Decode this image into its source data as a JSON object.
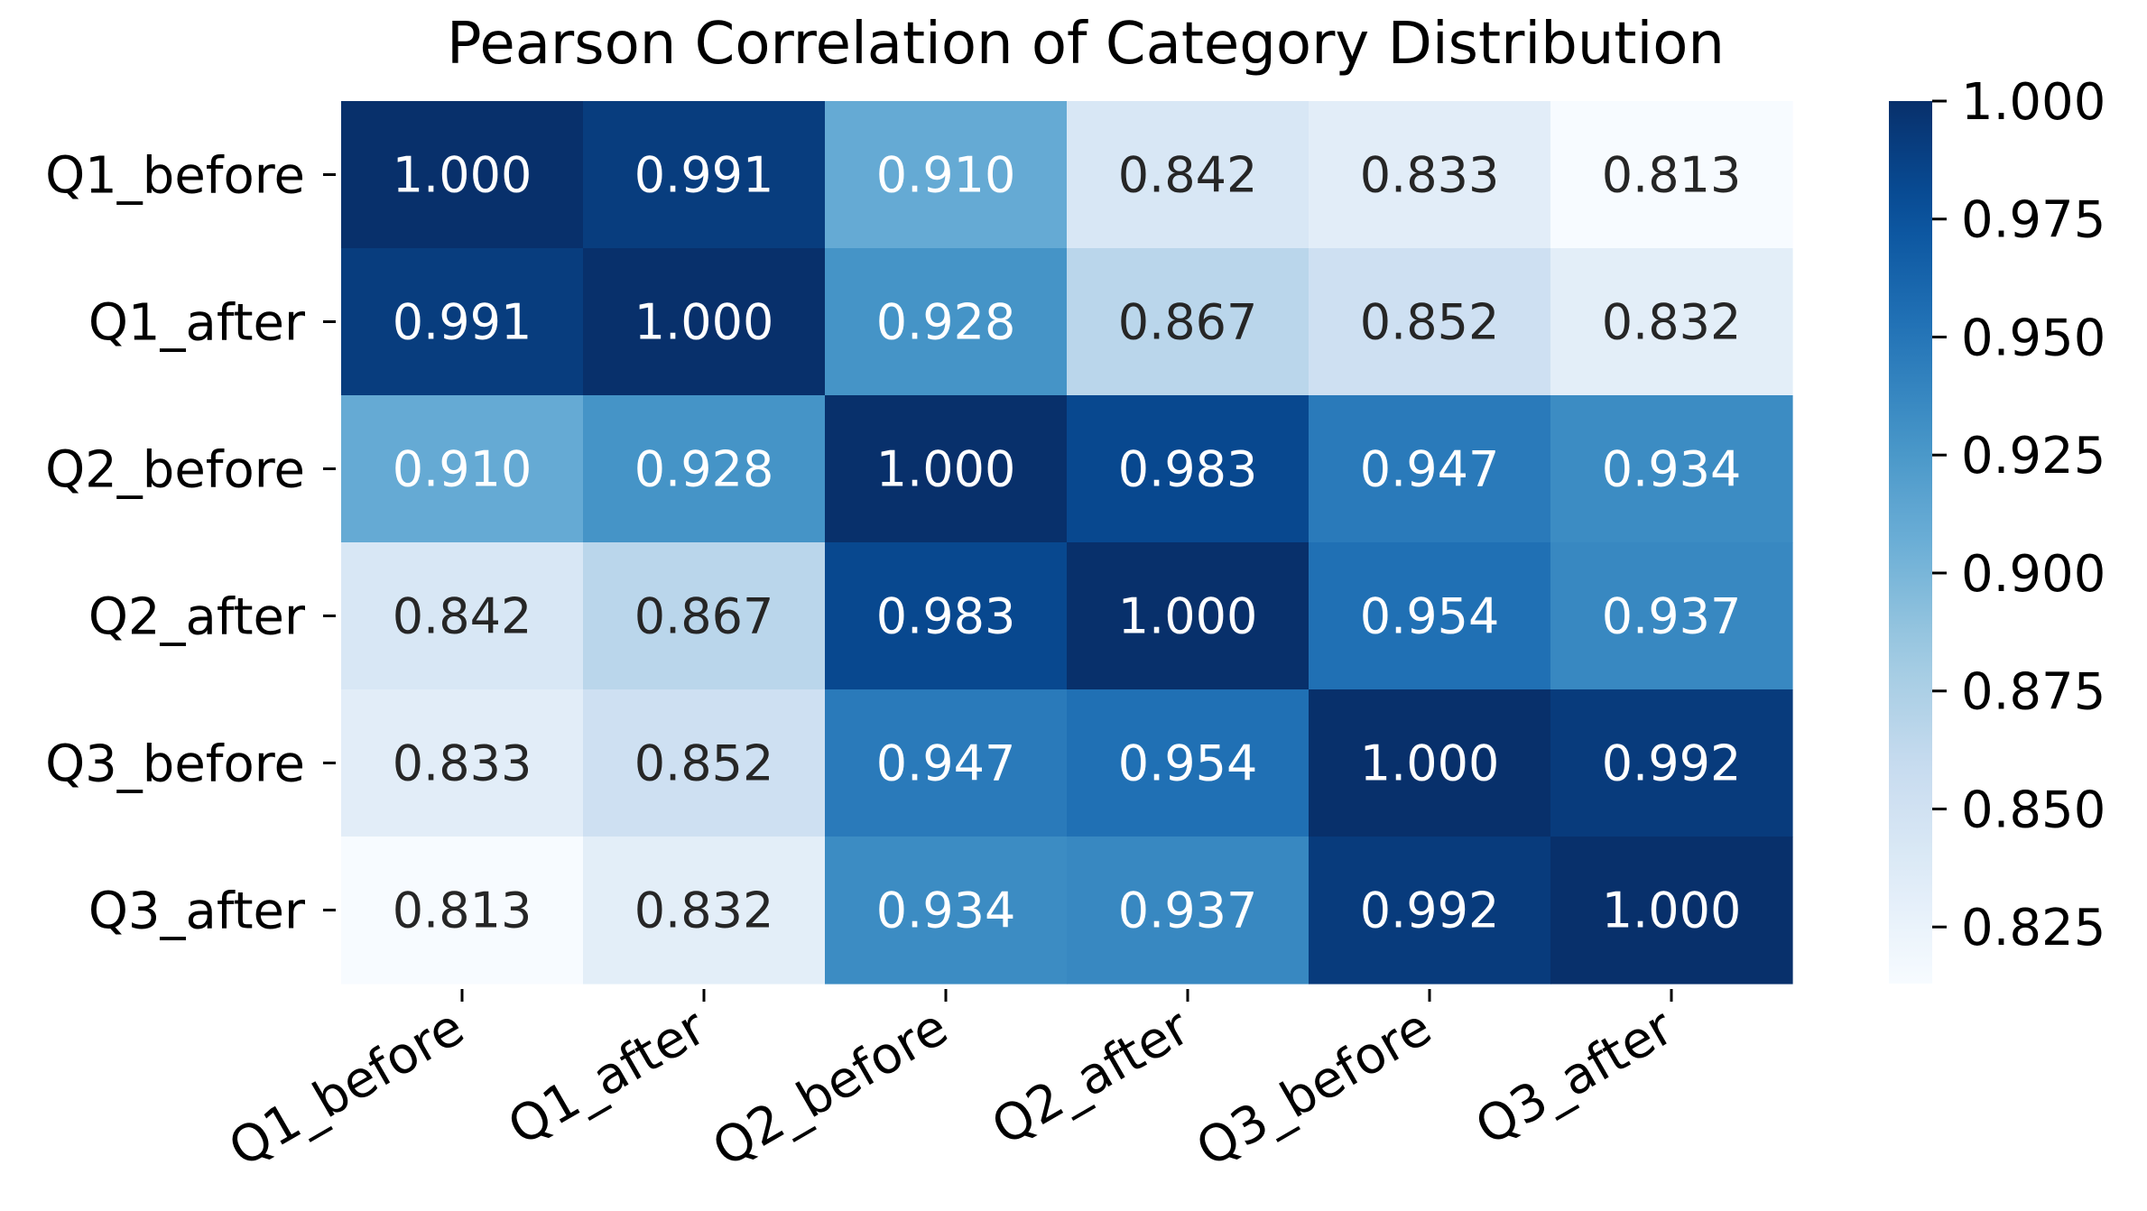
{
  "chart_data": {
    "type": "heatmap",
    "title": "Pearson Correlation of Category Distribution",
    "row_labels": [
      "Q1_before",
      "Q1_after",
      "Q2_before",
      "Q2_after",
      "Q3_before",
      "Q3_after"
    ],
    "col_labels": [
      "Q1_before",
      "Q1_after",
      "Q2_before",
      "Q2_after",
      "Q3_before",
      "Q3_after"
    ],
    "values": [
      [
        1.0,
        0.991,
        0.91,
        0.842,
        0.833,
        0.813
      ],
      [
        0.991,
        1.0,
        0.928,
        0.867,
        0.852,
        0.832
      ],
      [
        0.91,
        0.928,
        1.0,
        0.983,
        0.947,
        0.934
      ],
      [
        0.842,
        0.867,
        0.983,
        1.0,
        0.954,
        0.937
      ],
      [
        0.833,
        0.852,
        0.947,
        0.954,
        1.0,
        0.992
      ],
      [
        0.813,
        0.832,
        0.934,
        0.937,
        0.992,
        1.0
      ]
    ],
    "value_format_decimals": 3,
    "colormap": "Blues",
    "vmin": 0.813,
    "vmax": 1.0,
    "colorbar_ticks": [
      "0.825",
      "0.850",
      "0.875",
      "0.900",
      "0.925",
      "0.950",
      "0.975",
      "1.000"
    ],
    "colorbar_tick_values": [
      0.825,
      0.85,
      0.875,
      0.9,
      0.925,
      0.95,
      0.975,
      1.0
    ],
    "xlabel": "",
    "ylabel": ""
  },
  "colors": {
    "text_dark": "#262626",
    "text_light": "#ffffff",
    "axis": "#000000"
  }
}
